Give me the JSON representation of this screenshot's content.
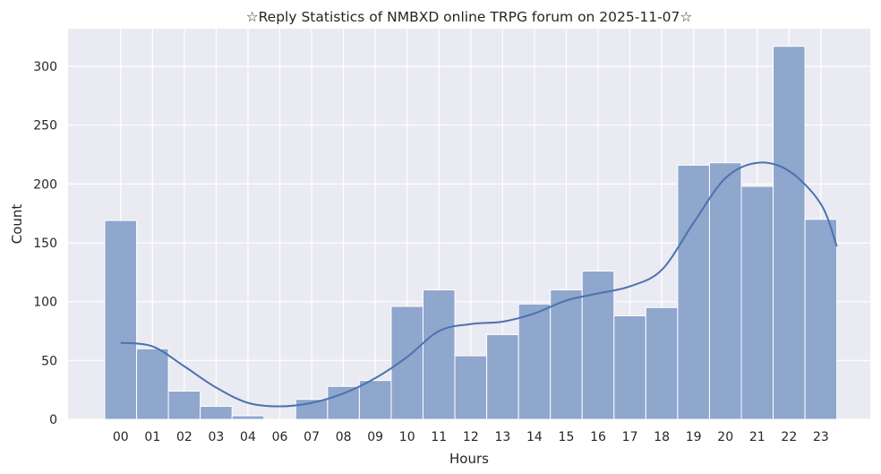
{
  "chart_data": {
    "type": "bar",
    "title": "☆Reply Statistics of NMBXD online TRPG forum on 2025-11-07☆",
    "xlabel": "Hours",
    "ylabel": "Count",
    "categories": [
      "00",
      "01",
      "02",
      "03",
      "04",
      "06",
      "07",
      "08",
      "09",
      "10",
      "11",
      "12",
      "13",
      "14",
      "15",
      "16",
      "17",
      "18",
      "19",
      "20",
      "21",
      "22",
      "23"
    ],
    "values": [
      169,
      60,
      24,
      11,
      3,
      0,
      17,
      28,
      33,
      96,
      110,
      54,
      72,
      98,
      110,
      126,
      88,
      95,
      216,
      218,
      198,
      317,
      170
    ],
    "ylim": [
      0,
      332
    ],
    "yticks": [
      0,
      50,
      100,
      150,
      200,
      250,
      300
    ],
    "kde": {
      "x": [
        0,
        1,
        2,
        3,
        4,
        5,
        6,
        7,
        8,
        9,
        10,
        11,
        12,
        13,
        14,
        15,
        16,
        17,
        18,
        19,
        20,
        21,
        22,
        22.5
      ],
      "y": [
        65,
        62,
        45,
        27,
        14,
        11,
        14,
        22,
        35,
        53,
        75,
        81,
        83,
        90,
        101,
        107,
        113,
        127,
        167,
        205,
        218,
        211,
        183,
        147
      ]
    },
    "grid": true,
    "colors": {
      "bar": "#8fa6cd",
      "line": "#4c72b0",
      "background": "#eaeaf2",
      "grid": "#ffffff"
    }
  }
}
